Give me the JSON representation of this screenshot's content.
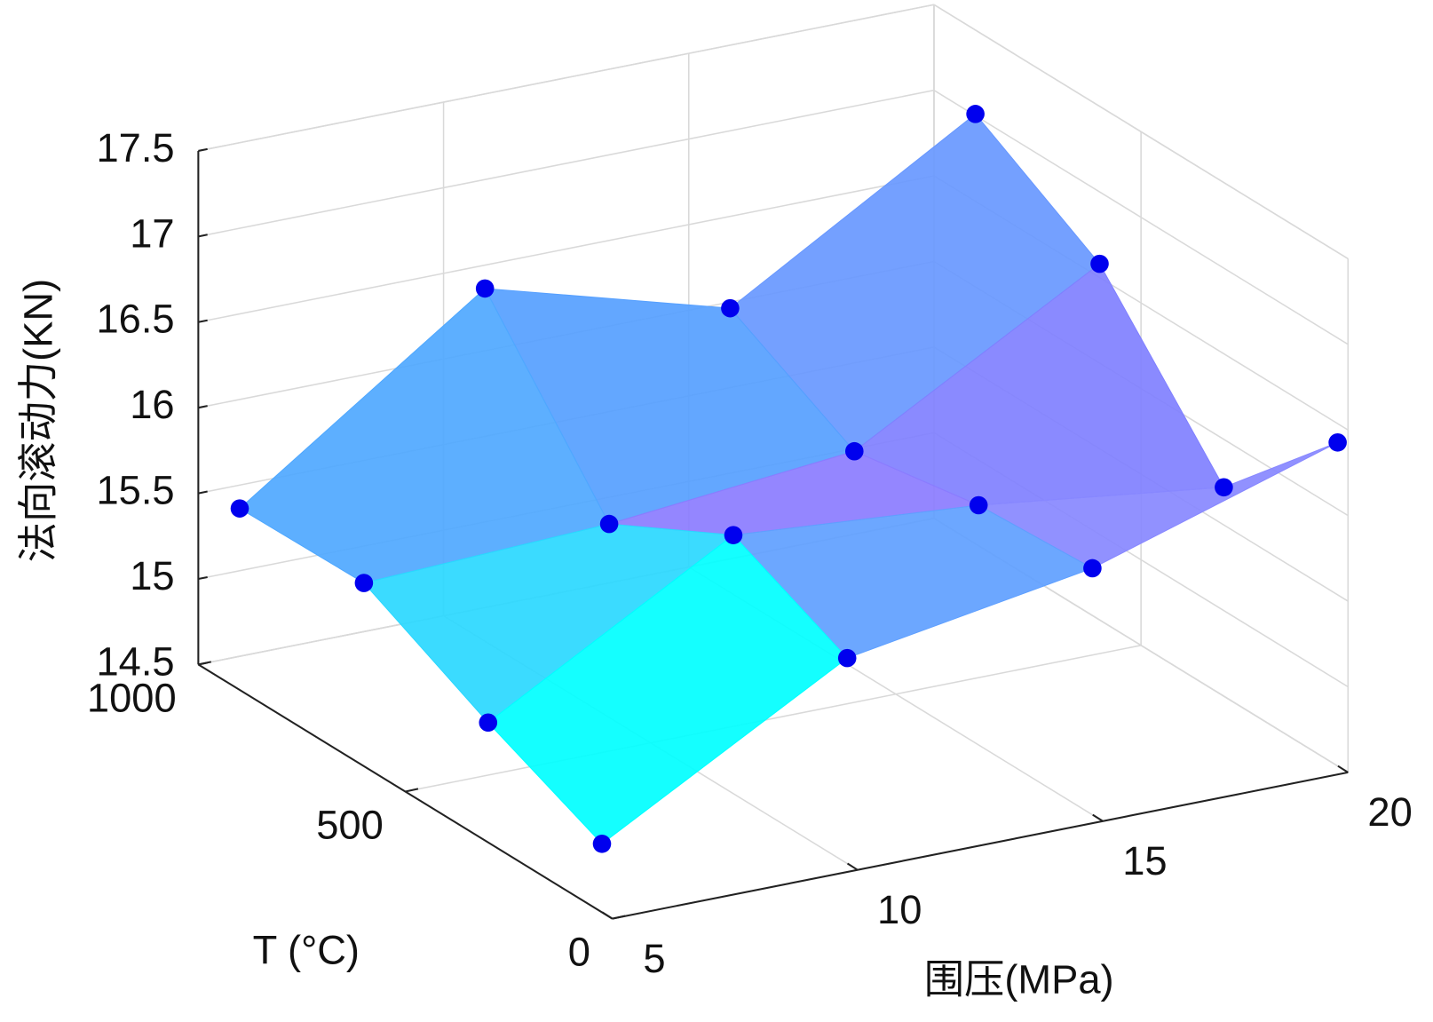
{
  "chart_data": {
    "type": "surface3d",
    "x_label": "围压(MPa)",
    "y_label": "T (°C)",
    "z_label": "法向滚动力(KN)",
    "x": [
      5,
      10,
      15,
      20
    ],
    "y": [
      25,
      300,
      600,
      900
    ],
    "z": [
      [
        14.9,
        15.7,
        15.94,
        16.39
      ],
      [
        15.2,
        16.01,
        15.9,
        15.72
      ],
      [
        15.57,
        15.63,
        15.77,
        16.58
      ],
      [
        15.56,
        16.56,
        16.16,
        17.01
      ]
    ],
    "face_colors": [
      [
        "#00ffff",
        "#5fa0ff",
        "#8888ff"
      ],
      [
        "#2ad8ff",
        "#8b7cff",
        "#8080ff"
      ],
      [
        "#4fa8ff",
        "#56a0ff",
        "#6898ff"
      ]
    ],
    "marker_color": "#0000ee",
    "xlim": [
      5,
      20
    ],
    "ylim": [
      0,
      1000
    ],
    "zlim": [
      14.5,
      17.5
    ],
    "xticks": [
      5,
      10,
      15,
      20
    ],
    "yticks": [
      0,
      500,
      1000
    ],
    "zticks": [
      14.5,
      15,
      15.5,
      16,
      16.5,
      17,
      17.5
    ],
    "grid": true
  }
}
